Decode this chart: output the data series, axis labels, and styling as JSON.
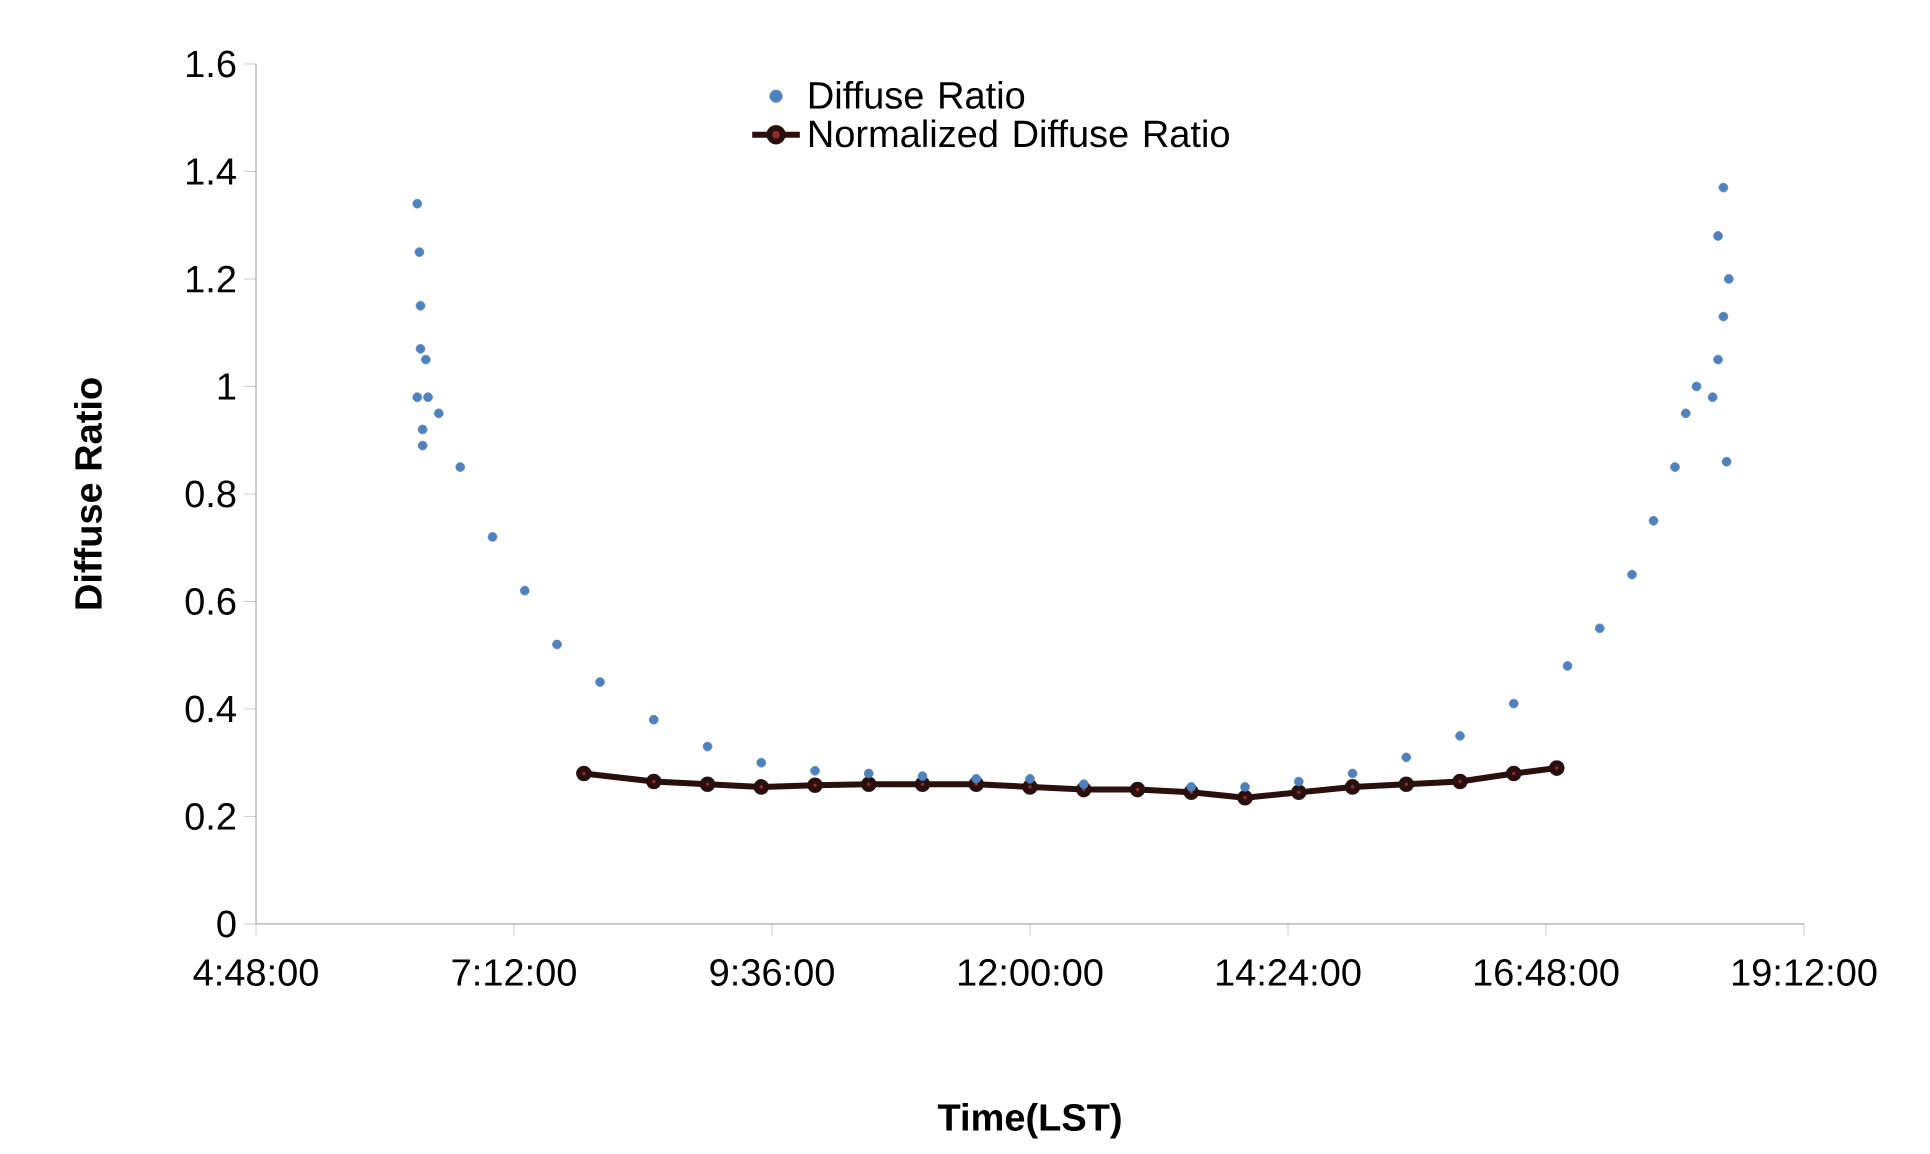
{
  "chart_data": {
    "type": "scatter",
    "xlabel": "Time(LST)",
    "ylabel": "Diffuse Ratio",
    "xlim": [
      4.8,
      19.2
    ],
    "ylim": [
      0,
      1.6
    ],
    "xticks": [
      {
        "value": 4.8,
        "label": "4:48:00"
      },
      {
        "value": 7.2,
        "label": "7:12:00"
      },
      {
        "value": 9.6,
        "label": "9:36:00"
      },
      {
        "value": 12,
        "label": "12:00:00"
      },
      {
        "value": 14.4,
        "label": "14:24:00"
      },
      {
        "value": 16.8,
        "label": "16:48:00"
      },
      {
        "value": 19.2,
        "label": "19:12:00"
      }
    ],
    "yticks": [
      0,
      0.2,
      0.4,
      0.6,
      0.8,
      1,
      1.2,
      1.4,
      1.6
    ],
    "grid": false,
    "legend": "top",
    "marker": "circle",
    "series": [
      {
        "name": "Diffuse Ratio",
        "color": "#4f81bd",
        "x": [
          6.3,
          6.32,
          6.33,
          6.33,
          6.38,
          6.3,
          6.4,
          6.35,
          6.35,
          6.5,
          6.7,
          7.0,
          7.3,
          7.6,
          8.0,
          8.5,
          9.0,
          9.5,
          10.0,
          10.5,
          11.0,
          11.5,
          12.0,
          12.5,
          13.5,
          14.0,
          14.5,
          15.0,
          15.5,
          16.0,
          16.5,
          17.0,
          17.3,
          17.6,
          17.8,
          18.0,
          18.1,
          18.2,
          18.35,
          18.4,
          18.45,
          18.5,
          18.45,
          18.4,
          18.48
        ],
        "values": [
          1.34,
          1.25,
          1.15,
          1.07,
          1.05,
          0.98,
          0.98,
          0.92,
          0.89,
          0.95,
          0.85,
          0.72,
          0.62,
          0.52,
          0.45,
          0.38,
          0.33,
          0.3,
          0.285,
          0.28,
          0.275,
          0.27,
          0.27,
          0.26,
          0.255,
          0.255,
          0.265,
          0.28,
          0.31,
          0.35,
          0.41,
          0.48,
          0.55,
          0.65,
          0.75,
          0.85,
          0.95,
          1.0,
          0.98,
          1.05,
          1.13,
          1.2,
          1.37,
          1.28,
          0.86
        ]
      },
      {
        "name": "Normalized Diffuse Ratio",
        "type": "line",
        "color": "#2a0f0f",
        "x": [
          7.85,
          8.5,
          9.0,
          9.5,
          10.0,
          10.5,
          11.0,
          11.5,
          12.0,
          12.5,
          13.0,
          13.5,
          14.0,
          14.5,
          15.0,
          15.5,
          16.0,
          16.5,
          16.9
        ],
        "values": [
          0.28,
          0.265,
          0.26,
          0.255,
          0.258,
          0.26,
          0.26,
          0.26,
          0.255,
          0.25,
          0.25,
          0.245,
          0.235,
          0.245,
          0.255,
          0.26,
          0.265,
          0.28,
          0.29
        ]
      }
    ]
  }
}
